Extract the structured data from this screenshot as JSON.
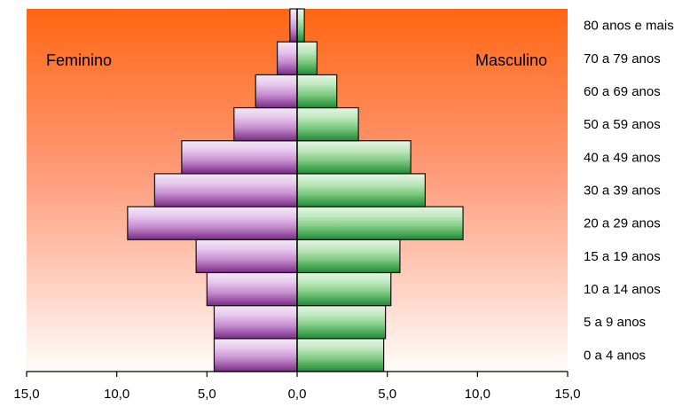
{
  "chart_data": {
    "type": "bar",
    "orientation": "horizontal",
    "subtype": "population-pyramid",
    "categories": [
      "0 a 4 anos",
      "5 a 9 anos",
      "10 a 14 anos",
      "15 a 19 anos",
      "20 a 29 anos",
      "30 a 39 anos",
      "40 a 49 anos",
      "50 a 59 anos",
      "60 a 69 anos",
      "70 a 79 anos",
      "80 anos e mais"
    ],
    "series": [
      {
        "name": "Feminino",
        "side": "left",
        "values": [
          4.6,
          4.6,
          5.0,
          5.6,
          9.4,
          7.9,
          6.4,
          3.5,
          2.3,
          1.1,
          0.4
        ],
        "color_light": "#f3e4f7",
        "color_dark": "#7a2a86"
      },
      {
        "name": "Masculino",
        "side": "right",
        "values": [
          4.8,
          4.9,
          5.2,
          5.7,
          9.2,
          7.1,
          6.3,
          3.4,
          2.2,
          1.1,
          0.4
        ],
        "color_light": "#e4f6e4",
        "color_dark": "#1f8a35"
      }
    ],
    "xlim": [
      -15,
      15
    ],
    "xticks": [
      {
        "value": -15,
        "label": "15,0"
      },
      {
        "value": -10,
        "label": "10,0"
      },
      {
        "value": -5,
        "label": "5,0"
      },
      {
        "value": 0,
        "label": "0,0"
      },
      {
        "value": 5,
        "label": "5,0"
      },
      {
        "value": 10,
        "label": "10,0"
      },
      {
        "value": 15,
        "label": "15,0"
      }
    ],
    "title": "",
    "xlabel": "",
    "ylabel": "",
    "grid": false,
    "background_gradient": {
      "top": "#ff6613",
      "bottom": "#fffcfa"
    },
    "legend": "inside-top"
  }
}
